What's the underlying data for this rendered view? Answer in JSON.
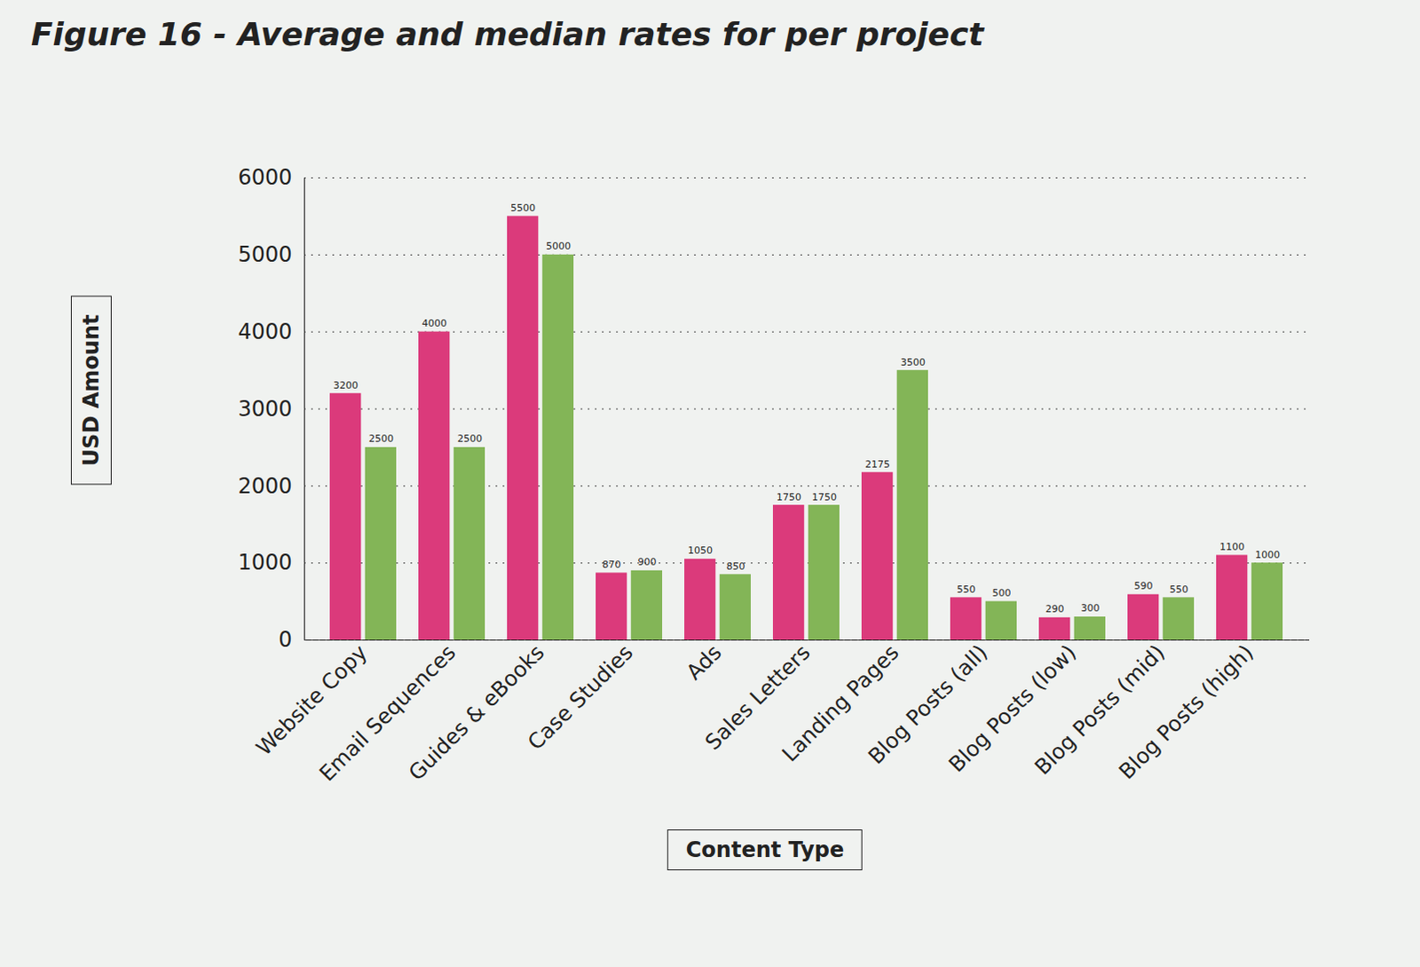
{
  "chart_data": {
    "type": "bar",
    "title": "Figure 16 - Average and median rates for per project",
    "xlabel": "Content Type",
    "ylabel": "USD Amount",
    "categories": [
      "Website Copy",
      "Email Sequences",
      "Guides & eBooks",
      "Case Studies",
      "Ads",
      "Sales Letters",
      "Landing Pages",
      "Blog Posts (all)",
      "Blog Posts (low)",
      "Blog Posts (mid)",
      "Blog Posts (high)"
    ],
    "series": [
      {
        "color": "#db3a7b",
        "values": [
          3200,
          4000,
          5500,
          870,
          1050,
          1750,
          2175,
          550,
          290,
          590,
          1100
        ]
      },
      {
        "color": "#83b557",
        "values": [
          2500,
          2500,
          5000,
          900,
          850,
          1750,
          3500,
          500,
          300,
          550,
          1000
        ]
      }
    ],
    "ylim": [
      0,
      6000
    ],
    "yticks": [
      0,
      1000,
      2000,
      3000,
      4000,
      5000,
      6000
    ],
    "grid": true,
    "data_labels": true
  }
}
